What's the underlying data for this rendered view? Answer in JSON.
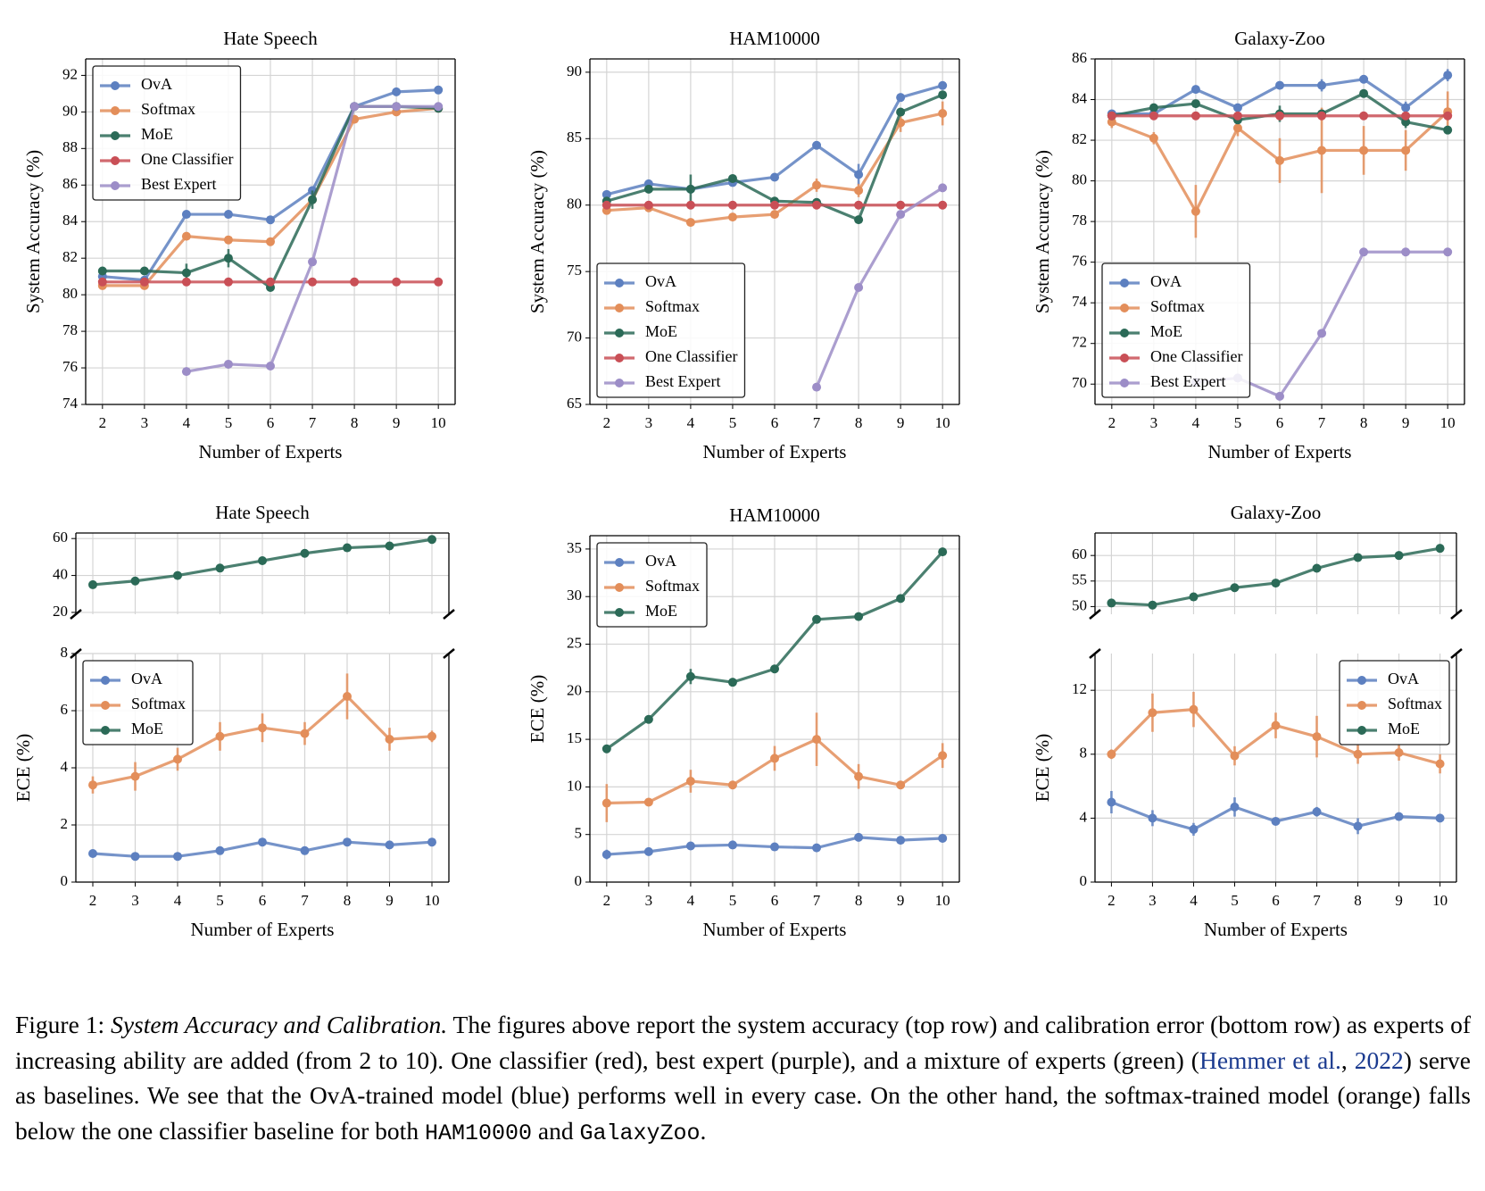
{
  "chart_data": [
    {
      "type": "line",
      "title": "Hate Speech",
      "xlabel": "Number of Experts",
      "ylabel": "System Accuracy (%)",
      "x": [
        2,
        3,
        4,
        5,
        6,
        7,
        8,
        9,
        10
      ],
      "xlim": [
        1.6,
        10.4
      ],
      "xticks": [
        2,
        3,
        4,
        5,
        6,
        7,
        8,
        9,
        10
      ],
      "ylim": [
        74,
        92.9
      ],
      "yticks": [
        74,
        76,
        78,
        80,
        82,
        84,
        86,
        88,
        90,
        92
      ],
      "grid": true,
      "legend": "upper left",
      "series": [
        {
          "name": "OvA",
          "color": "#5d80c0",
          "values": [
            81.0,
            80.8,
            84.4,
            84.4,
            84.1,
            85.7,
            90.3,
            91.1,
            91.2
          ]
        },
        {
          "name": "Softmax",
          "color": "#e38e5a",
          "values": [
            80.5,
            80.5,
            83.2,
            83.0,
            82.9,
            85.2,
            89.6,
            90.0,
            90.2
          ]
        },
        {
          "name": "MoE",
          "color": "#2b6a57",
          "values": [
            81.3,
            81.3,
            81.2,
            82.0,
            80.4,
            85.2,
            90.3,
            90.3,
            90.2
          ],
          "errors": [
            0.2,
            0.2,
            0.5,
            0.5,
            0.2,
            0.5,
            0.2,
            0.2,
            0.1
          ]
        },
        {
          "name": "One Classifier",
          "color": "#c94f56",
          "values": [
            80.7,
            80.7,
            80.7,
            80.7,
            80.7,
            80.7,
            80.7,
            80.7,
            80.7
          ]
        },
        {
          "name": "Best Expert",
          "color": "#9c8dc7",
          "values": [
            null,
            null,
            75.8,
            76.2,
            76.1,
            81.8,
            90.3,
            90.3,
            90.3
          ]
        }
      ]
    },
    {
      "type": "line",
      "title": "HAM10000",
      "xlabel": "Number of Experts",
      "ylabel": "System Accuracy (%)",
      "x": [
        2,
        3,
        4,
        5,
        6,
        7,
        8,
        9,
        10
      ],
      "xlim": [
        1.6,
        10.4
      ],
      "xticks": [
        2,
        3,
        4,
        5,
        6,
        7,
        8,
        9,
        10
      ],
      "ylim": [
        65,
        91
      ],
      "yticks": [
        65,
        70,
        75,
        80,
        85,
        90
      ],
      "grid": true,
      "legend": "lower left",
      "series": [
        {
          "name": "OvA",
          "color": "#5d80c0",
          "values": [
            80.8,
            81.6,
            81.2,
            81.7,
            82.1,
            84.5,
            82.3,
            88.1,
            89.0
          ],
          "errors": [
            0.3,
            0.3,
            0.3,
            0.3,
            0.3,
            0.3,
            0.8,
            0.3,
            0.3
          ]
        },
        {
          "name": "Softmax",
          "color": "#e38e5a",
          "values": [
            79.6,
            79.8,
            78.7,
            79.1,
            79.3,
            81.5,
            81.1,
            86.2,
            86.9
          ],
          "errors": [
            0.2,
            0.2,
            0.2,
            0.2,
            0.3,
            0.5,
            0.5,
            0.7,
            0.9
          ]
        },
        {
          "name": "MoE",
          "color": "#2b6a57",
          "values": [
            80.3,
            81.2,
            81.2,
            82.0,
            80.3,
            80.2,
            78.9,
            87.0,
            88.3
          ],
          "errors": [
            0.2,
            0.2,
            1.1,
            0.3,
            0.3,
            0.3,
            0.3,
            0.3,
            0.3
          ]
        },
        {
          "name": "One Classifier",
          "color": "#c94f56",
          "values": [
            80.0,
            80.0,
            80.0,
            80.0,
            80.0,
            80.0,
            80.0,
            80.0,
            80.0
          ]
        },
        {
          "name": "Best Expert",
          "color": "#9c8dc7",
          "values": [
            null,
            null,
            null,
            null,
            null,
            66.3,
            73.8,
            79.3,
            81.3
          ]
        }
      ]
    },
    {
      "type": "line",
      "title": "Galaxy-Zoo",
      "xlabel": "Number of Experts",
      "ylabel": "System Accuracy (%)",
      "x": [
        2,
        3,
        4,
        5,
        6,
        7,
        8,
        9,
        10
      ],
      "xlim": [
        1.6,
        10.4
      ],
      "xticks": [
        2,
        3,
        4,
        5,
        6,
        7,
        8,
        9,
        10
      ],
      "ylim": [
        69,
        86
      ],
      "yticks": [
        70,
        72,
        74,
        76,
        78,
        80,
        82,
        84,
        86
      ],
      "grid": true,
      "legend": "lower left",
      "series": [
        {
          "name": "OvA",
          "color": "#5d80c0",
          "values": [
            83.3,
            83.3,
            84.5,
            83.6,
            84.7,
            84.7,
            85.0,
            83.6,
            85.2
          ],
          "errors": [
            0.1,
            0.1,
            0.2,
            0.2,
            0.1,
            0.3,
            0.2,
            0.3,
            0.3
          ]
        },
        {
          "name": "Softmax",
          "color": "#e38e5a",
          "values": [
            82.9,
            82.1,
            78.5,
            82.6,
            81.0,
            81.5,
            81.5,
            81.5,
            83.4
          ],
          "errors": [
            0.3,
            0.3,
            1.3,
            0.4,
            1.1,
            2.1,
            1.2,
            1.0,
            1.0
          ]
        },
        {
          "name": "MoE",
          "color": "#2b6a57",
          "values": [
            83.2,
            83.6,
            83.8,
            83.0,
            83.3,
            83.3,
            84.3,
            82.9,
            82.5
          ],
          "errors": [
            0.1,
            0.2,
            0.2,
            0.2,
            0.4,
            0.2,
            0.1,
            0.3,
            0.1
          ]
        },
        {
          "name": "One Classifier",
          "color": "#c94f56",
          "values": [
            83.2,
            83.2,
            83.2,
            83.2,
            83.2,
            83.2,
            83.2,
            83.2,
            83.2
          ]
        },
        {
          "name": "Best Expert",
          "color": "#9c8dc7",
          "values": [
            null,
            null,
            70.1,
            70.3,
            69.4,
            72.5,
            76.5,
            76.5,
            76.5
          ]
        }
      ]
    },
    {
      "type": "line",
      "title": "Hate Speech",
      "xlabel": "Number of Experts",
      "ylabel": "ECE (%)",
      "x": [
        2,
        3,
        4,
        5,
        6,
        7,
        8,
        9,
        10
      ],
      "xlim": [
        1.6,
        10.4
      ],
      "xticks": [
        2,
        3,
        4,
        5,
        6,
        7,
        8,
        9,
        10
      ],
      "ylim": [
        0,
        8
      ],
      "yticks": [
        0,
        2,
        4,
        6,
        8
      ],
      "ylim_upper": [
        19,
        63
      ],
      "yticks_upper": [
        20,
        40,
        60
      ],
      "grid": true,
      "legend": "upper left",
      "series": [
        {
          "name": "OvA",
          "color": "#5d80c0",
          "values": [
            1.0,
            0.9,
            0.9,
            1.1,
            1.4,
            1.1,
            1.4,
            1.3,
            1.4
          ]
        },
        {
          "name": "Softmax",
          "color": "#e38e5a",
          "values": [
            3.4,
            3.7,
            4.3,
            5.1,
            5.4,
            5.2,
            6.5,
            5.0,
            5.1
          ],
          "errors": [
            0.3,
            0.5,
            0.4,
            0.5,
            0.5,
            0.4,
            0.8,
            0.4,
            0.2
          ]
        },
        {
          "name": "MoE",
          "color": "#2b6a57",
          "panel": "upper",
          "values": [
            35,
            37,
            40,
            44,
            48,
            52,
            55,
            56,
            59.5
          ]
        }
      ]
    },
    {
      "type": "line",
      "title": "HAM10000",
      "xlabel": "Number of Experts",
      "ylabel": "ECE (%)",
      "x": [
        2,
        3,
        4,
        5,
        6,
        7,
        8,
        9,
        10
      ],
      "xlim": [
        1.6,
        10.4
      ],
      "xticks": [
        2,
        3,
        4,
        5,
        6,
        7,
        8,
        9,
        10
      ],
      "ylim": [
        0,
        36.4
      ],
      "yticks": [
        0,
        5,
        10,
        15,
        20,
        25,
        30,
        35
      ],
      "grid": true,
      "legend": "upper left",
      "series": [
        {
          "name": "OvA",
          "color": "#5d80c0",
          "values": [
            2.9,
            3.2,
            3.8,
            3.9,
            3.7,
            3.6,
            4.7,
            4.4,
            4.6
          ],
          "errors": [
            0.5,
            0.2,
            0.2,
            0.2,
            0.2,
            0.2,
            0.3,
            0.2,
            0.2
          ]
        },
        {
          "name": "Softmax",
          "color": "#e38e5a",
          "values": [
            8.3,
            8.4,
            10.6,
            10.2,
            13.0,
            15.0,
            11.1,
            10.2,
            13.3
          ],
          "errors": [
            2.0,
            0.2,
            1.2,
            0.3,
            1.3,
            2.8,
            1.3,
            0.3,
            1.3
          ]
        },
        {
          "name": "MoE",
          "color": "#2b6a57",
          "values": [
            14.0,
            17.1,
            21.6,
            21.0,
            22.4,
            27.6,
            27.9,
            29.8,
            34.7
          ],
          "errors": [
            0.3,
            0.3,
            0.8,
            0.3,
            0.3,
            0.3,
            0.3,
            0.3,
            0.3
          ]
        }
      ]
    },
    {
      "type": "line",
      "title": "Galaxy-Zoo",
      "xlabel": "Number of Experts",
      "ylabel": "ECE (%)",
      "x": [
        2,
        3,
        4,
        5,
        6,
        7,
        8,
        9,
        10
      ],
      "xlim": [
        1.6,
        10.4
      ],
      "xticks": [
        2,
        3,
        4,
        5,
        6,
        7,
        8,
        9,
        10
      ],
      "ylim": [
        0,
        14.3
      ],
      "yticks": [
        0,
        4,
        8,
        12
      ],
      "ylim_upper": [
        48.5,
        64.4
      ],
      "yticks_upper": [
        50,
        55,
        60
      ],
      "grid": true,
      "legend": "upper right",
      "series": [
        {
          "name": "OvA",
          "color": "#5d80c0",
          "values": [
            5.0,
            4.0,
            3.3,
            4.7,
            3.8,
            4.4,
            3.5,
            4.1,
            4.0
          ],
          "errors": [
            0.7,
            0.5,
            0.4,
            0.6,
            0.2,
            0.3,
            0.5,
            0.2,
            0.2
          ]
        },
        {
          "name": "Softmax",
          "color": "#e38e5a",
          "values": [
            8.0,
            10.6,
            10.8,
            7.9,
            9.8,
            9.1,
            8.0,
            8.1,
            7.4
          ],
          "errors": [
            0.3,
            1.2,
            1.1,
            0.6,
            0.8,
            1.3,
            0.6,
            0.5,
            0.6
          ]
        },
        {
          "name": "MoE",
          "color": "#2b6a57",
          "panel": "upper",
          "values": [
            50.7,
            50.3,
            51.9,
            53.7,
            54.6,
            57.5,
            59.6,
            60.0,
            61.4
          ]
        }
      ]
    }
  ],
  "caption": {
    "parts": [
      "Figure 1: ",
      "System Accuracy and Calibration.",
      " The figures above report the system accuracy (top row) and calibration error (bottom row) as experts of increasing ability are added (from 2 to 10).  One classifier (red), best expert (purple), and a mixture of experts (green) (",
      "Hemmer et al.",
      ", ",
      "2022",
      ") serve as baselines. We see that the OvA-trained model (blue) performs well in every case. On the other hand, the softmax-trained model (orange) falls below the one classifier baseline for both ",
      "HAM10000",
      " and ",
      "GalaxyZoo",
      "."
    ]
  }
}
